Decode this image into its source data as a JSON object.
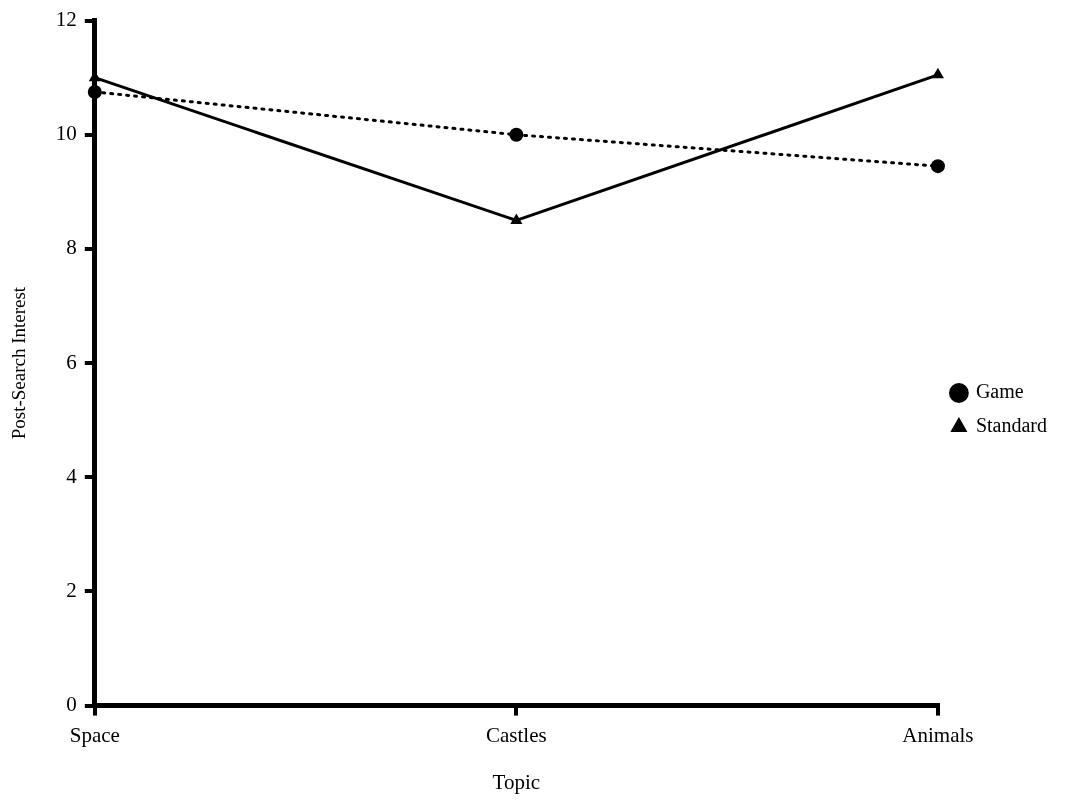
{
  "chart_data": {
    "type": "line",
    "xlabel": "Topic",
    "ylabel": "Post-Search Interest",
    "categories": [
      "Space",
      "Castles",
      "Animals"
    ],
    "series": [
      {
        "name": "Game",
        "color": "#000000",
        "values": [
          10.75,
          10.0,
          9.45
        ],
        "marker": "circle",
        "line_style": "dotted"
      },
      {
        "name": "Standard",
        "color": "#000000",
        "values": [
          11.0,
          8.5,
          11.05
        ],
        "marker": "triangle",
        "line_style": "solid"
      }
    ],
    "ylim": [
      0,
      12
    ],
    "yticks": [
      0,
      2,
      4,
      6,
      8,
      10,
      12
    ],
    "grid": false,
    "legend": "right"
  }
}
